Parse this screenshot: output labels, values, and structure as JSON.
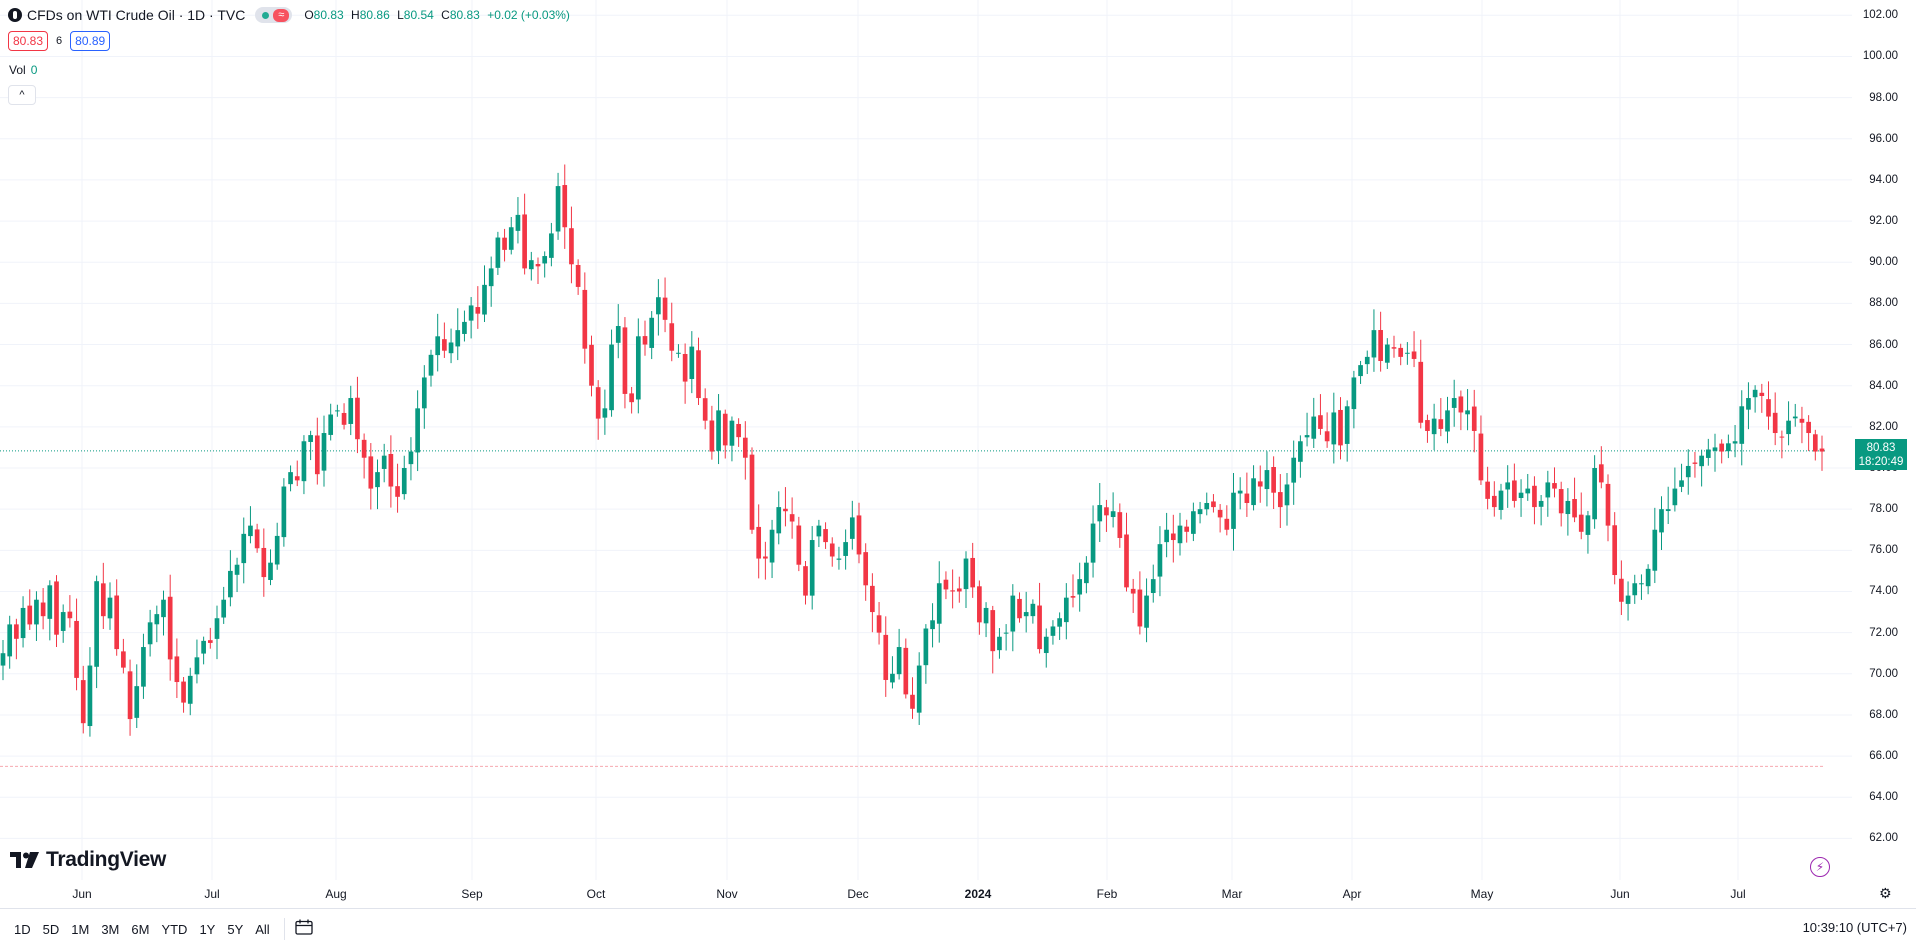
{
  "header": {
    "title": "CFDs on WTI Crude Oil · 1D · TVC",
    "ohlc": {
      "open_label": "O",
      "open": "80.83",
      "high_label": "H",
      "high": "80.86",
      "low_label": "L",
      "low": "80.54",
      "close_label": "C",
      "close": "80.83",
      "change": "+0.02 (+0.03%)"
    },
    "status_icon": "market-open-dot",
    "wave_icon": "≈"
  },
  "trade": {
    "bid": "80.83",
    "spread": "6",
    "ask": "80.89"
  },
  "volume": {
    "label": "Vol",
    "value": "0"
  },
  "collapse_icon": "^",
  "last_price": {
    "price": "80.83",
    "countdown": "18:20:49"
  },
  "brand": "TradingView",
  "bottom_bar": {
    "ranges": [
      "1D",
      "5D",
      "1M",
      "3M",
      "6M",
      "YTD",
      "1Y",
      "5Y",
      "All"
    ],
    "calendar_icon": "calendar-icon",
    "clock": "10:39:10 (UTC+7)"
  },
  "colors": {
    "up": "#089981",
    "down": "#f23645",
    "accent": "#2962ff",
    "bolt": "#9c27b0"
  },
  "chart_data": {
    "type": "candlestick",
    "title": "CFDs on WTI Crude Oil · 1D · TVC",
    "y_range": [
      61,
      102.5
    ],
    "y_ticks": [
      "102.00",
      "100.00",
      "98.00",
      "96.00",
      "94.00",
      "92.00",
      "90.00",
      "88.00",
      "86.00",
      "84.00",
      "82.00",
      "80.00",
      "78.00",
      "76.00",
      "74.00",
      "72.00",
      "70.00",
      "68.00",
      "66.00",
      "64.00",
      "62.00"
    ],
    "x_ticks": [
      "Jun",
      "Jul",
      "Aug",
      "Sep",
      "Oct",
      "Nov",
      "Dec",
      "2024",
      "Feb",
      "Mar",
      "Apr",
      "May",
      "Jun",
      "Jul"
    ],
    "current_price_line": 80.83,
    "lower_line": 65.5,
    "closes": [
      71,
      72.4,
      71.7,
      73.2,
      72.4,
      73.6,
      72.8,
      74.3,
      71.9,
      73,
      72.7,
      69.8,
      67.6,
      70.4,
      74.5,
      72.8,
      73.7,
      71.2,
      70.3,
      67.8,
      69.4,
      71.3,
      72.5,
      72.9,
      73.6,
      70.7,
      69.6,
      68.6,
      69.9,
      70.8,
      71.6,
      71.5,
      72.7,
      73.6,
      75,
      75.3,
      76.8,
      77.2,
      76.1,
      74.7,
      75.4,
      76.7,
      79.1,
      79.8,
      79.4,
      81.3,
      81.6,
      79.7,
      81.7,
      82.6,
      82.8,
      82.1,
      83.4,
      81.4,
      80.5,
      79,
      79.8,
      80.6,
      79.1,
      78.6,
      80,
      80.8,
      82.9,
      84.4,
      85.5,
      86.4,
      85.7,
      86.1,
      86.7,
      87.1,
      87.9,
      87.5,
      88.9,
      89.7,
      91.2,
      90.6,
      91.7,
      92.3,
      89.7,
      90.1,
      89.8,
      90.3,
      91.4,
      93.7,
      91.7,
      89.9,
      88.8,
      85.8,
      84,
      82.4,
      82.9,
      86,
      86.9,
      83.6,
      83.2,
      86.4,
      86,
      87.3,
      88.3,
      87.2,
      85.7,
      85.6,
      84.2,
      85.9,
      83.4,
      82.3,
      80.8,
      82.8,
      81.1,
      82.3,
      81.5,
      80.5,
      77,
      75.6,
      75.6,
      77,
      78.1,
      77.9,
      77.4,
      75.3,
      73.8,
      76.5,
      77.2,
      76.4,
      75.7,
      75.6,
      76.4,
      77.6,
      75.8,
      74.3,
      73,
      72,
      69.7,
      70,
      71.3,
      69,
      68.3,
      70.4,
      72.2,
      72.6,
      74.4,
      74.1,
      74,
      74,
      75.6,
      74.2,
      72.5,
      73.2,
      71.1,
      71.8,
      72,
      73.8,
      72.7,
      73,
      73.4,
      71.2,
      71.8,
      72.3,
      72.7,
      73.7,
      73.7,
      74.6,
      75.4,
      77.3,
      78.2,
      77.7,
      77.9,
      76.6,
      74.2,
      73.9,
      72.3,
      73.8,
      74.6,
      76.3,
      77,
      76.5,
      77.2,
      76.9,
      77.9,
      78,
      78.3,
      78.1,
      77.6,
      77,
      78.8,
      78.9,
      78.3,
      79.5,
      79.1,
      79.9,
      78.8,
      78.1,
      79.2,
      80.5,
      81.3,
      81.6,
      82.5,
      81.9,
      81.3,
      82.7,
      81.1,
      83,
      84.4,
      85,
      85.4,
      86.7,
      85.2,
      86,
      85.8,
      85.4,
      85.6,
      85.3,
      82.2,
      81.8,
      82.4,
      81.9,
      82.8,
      83.4,
      82.7,
      82.8,
      81.8,
      79.4,
      78.5,
      78.1,
      78.9,
      79.3,
      78.4,
      78.8,
      79,
      78.1,
      78.4,
      79.3,
      79,
      77.8,
      78.4,
      77.6,
      76.9,
      77.7,
      80,
      79.3,
      77.2,
      74.8,
      73.5,
      73.8,
      74.4,
      74.4,
      75.1,
      77,
      78,
      78,
      79,
      79.4,
      80.1,
      80.2,
      80.6,
      80.9,
      81,
      80.8,
      81.2,
      81.3,
      83,
      83.4,
      83.8,
      83.5,
      82.5,
      81.7,
      81.5,
      82.3,
      82.5,
      82.2,
      81.7,
      80.8,
      80.8
    ]
  }
}
